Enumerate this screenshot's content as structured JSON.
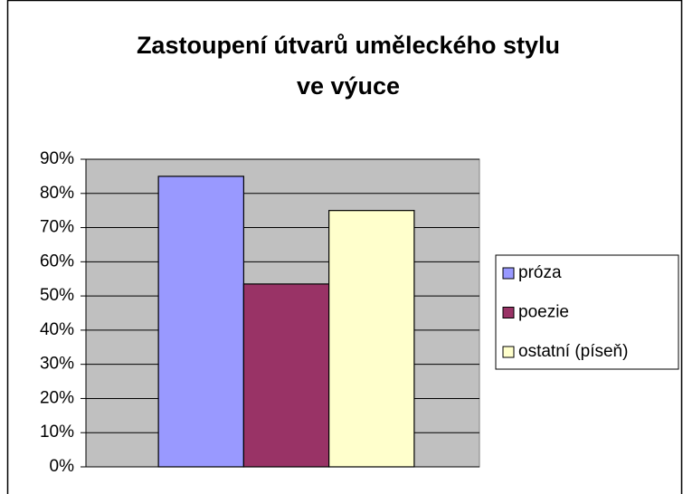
{
  "chart_data": {
    "type": "bar",
    "title": [
      "Zastoupení útvarů uměleckého stylu",
      "ve výuce"
    ],
    "categories": [
      null
    ],
    "series": [
      {
        "name": "próza",
        "color": "#9999ff",
        "values": [
          85
        ]
      },
      {
        "name": "poezie",
        "color": "#993366",
        "values": [
          53.5
        ]
      },
      {
        "name": "ostatní (píseň)",
        "color": "#ffffcc",
        "values": [
          75
        ]
      }
    ],
    "ylim": [
      0,
      90
    ],
    "yticks": [
      {
        "value": 0,
        "label": "0%"
      },
      {
        "value": 10,
        "label": "10%"
      },
      {
        "value": 20,
        "label": "20%"
      },
      {
        "value": 30,
        "label": "30%"
      },
      {
        "value": 40,
        "label": "40%"
      },
      {
        "value": 50,
        "label": "50%"
      },
      {
        "value": 60,
        "label": "60%"
      },
      {
        "value": 70,
        "label": "70%"
      },
      {
        "value": 80,
        "label": "80%"
      },
      {
        "value": 90,
        "label": "90%"
      }
    ],
    "grid": true,
    "legend": "right"
  }
}
